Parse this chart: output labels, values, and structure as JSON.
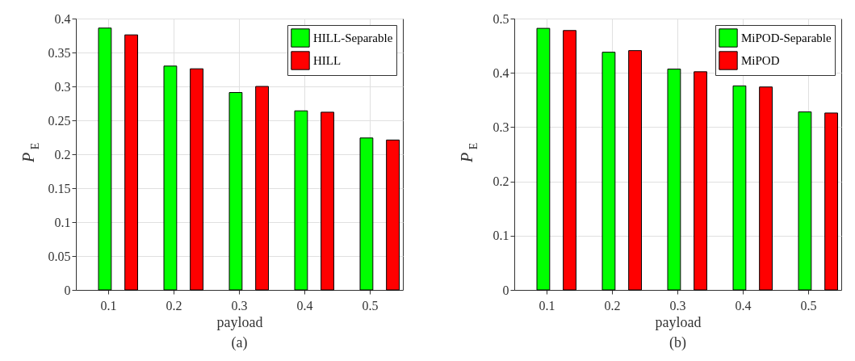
{
  "chart_data": [
    {
      "type": "bar",
      "categories": [
        "0.1",
        "0.2",
        "0.3",
        "0.4",
        "0.5"
      ],
      "xlabel": "payload",
      "ylabel": "P$_{E}$",
      "series": [
        {
          "name": "HILL-Separable",
          "color": "#00ff00",
          "values": [
            0.386,
            0.33,
            0.291,
            0.264,
            0.224
          ]
        },
        {
          "name": "HILL",
          "color": "#ff0000",
          "values": [
            0.376,
            0.326,
            0.3,
            0.262,
            0.221
          ]
        }
      ],
      "ylim": [
        0,
        0.4
      ],
      "yticks": [
        0,
        0.05,
        0.1,
        0.15,
        0.2,
        0.25,
        0.3,
        0.35,
        0.4
      ],
      "grid": true,
      "legend": "top right",
      "annotations": [
        "(a)"
      ]
    },
    {
      "type": "bar",
      "categories": [
        "0.1",
        "0.2",
        "0.3",
        "0.4",
        "0.5"
      ],
      "xlabel": "payload",
      "ylabel": "P$_{E}$",
      "series": [
        {
          "name": "MiPOD-Separable",
          "color": "#00ff00",
          "values": [
            0.482,
            0.438,
            0.407,
            0.376,
            0.328
          ]
        },
        {
          "name": "MiPOD",
          "color": "#ff0000",
          "values": [
            0.478,
            0.441,
            0.402,
            0.374,
            0.326
          ]
        }
      ],
      "ylim": [
        0,
        0.5
      ],
      "yticks": [
        0,
        0.1,
        0.2,
        0.3,
        0.4,
        0.5
      ],
      "grid": true,
      "legend": "top right",
      "annotations": [
        "(b)"
      ]
    }
  ]
}
